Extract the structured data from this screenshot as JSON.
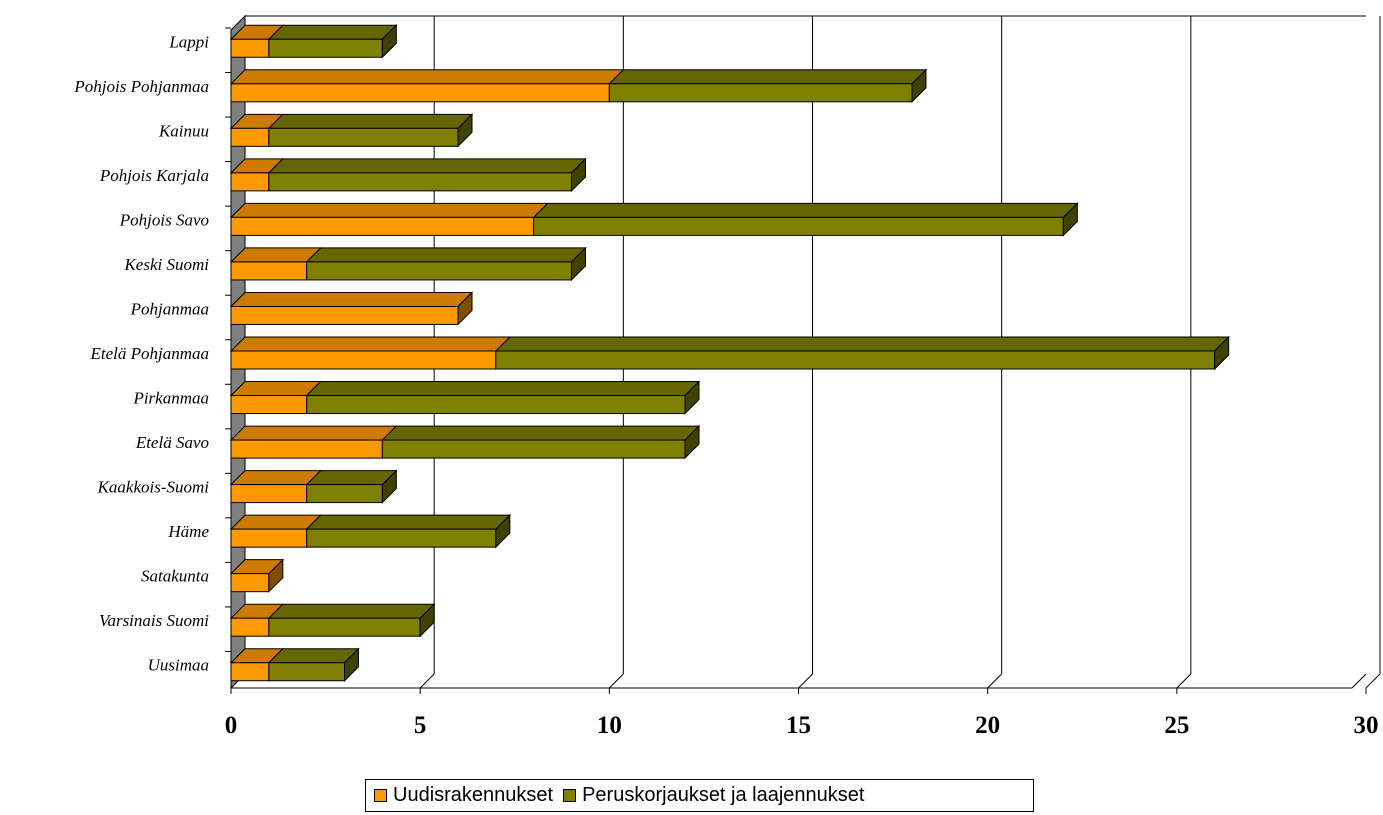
{
  "chart_data": {
    "type": "bar",
    "orientation": "horizontal",
    "stacked": true,
    "three_d": true,
    "title": "",
    "xlabel": "",
    "ylabel": "",
    "xlim": [
      0,
      30
    ],
    "x_ticks": [
      "0",
      "5",
      "10",
      "15",
      "20",
      "25",
      "30"
    ],
    "grid": "vertical",
    "legend_position": "bottom",
    "categories": [
      "Lappi",
      "Pohjois Pohjanmaa",
      "Kainuu",
      "Pohjois Karjala",
      "Pohjois Savo",
      "Keski Suomi",
      "Pohjanmaa",
      "Etelä Pohjanmaa",
      "Pirkanmaa",
      "Etelä Savo",
      "Kaakkois-Suomi",
      "Häme",
      "Satakunta",
      "Varsinais Suomi",
      "Uusimaa"
    ],
    "series": [
      {
        "name": "Uudisrakennukset",
        "color": "#ff9900",
        "values": [
          1,
          10,
          1,
          1,
          8,
          2,
          6,
          7,
          2,
          4,
          2,
          2,
          1,
          1,
          1
        ]
      },
      {
        "name": "Peruskorjaukset ja laajennukset",
        "color": "#808000",
        "values": [
          3,
          8,
          5,
          8,
          14,
          7,
          0,
          19,
          10,
          8,
          2,
          5,
          0,
          4,
          2
        ]
      }
    ]
  }
}
